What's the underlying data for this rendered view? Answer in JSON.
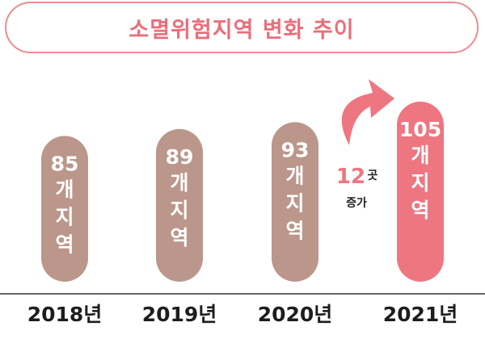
{
  "colors": {
    "accent": "#ea6e7a",
    "bar": "#bb968a",
    "highlight": "#ee7681",
    "axis": "#333333"
  },
  "chart_data": {
    "type": "bar",
    "title": "소멸위험지역 변화 추이",
    "categories": [
      "2018년",
      "2019년",
      "2020년",
      "2021년"
    ],
    "values": [
      85,
      89,
      93,
      105
    ],
    "value_labels": [
      "85",
      "89",
      "93",
      "105"
    ],
    "unit_lines": [
      "개",
      "지",
      "역"
    ],
    "highlight_index": 3,
    "annotation": {
      "number": "12",
      "unit": "곳",
      "text": "증가"
    }
  }
}
